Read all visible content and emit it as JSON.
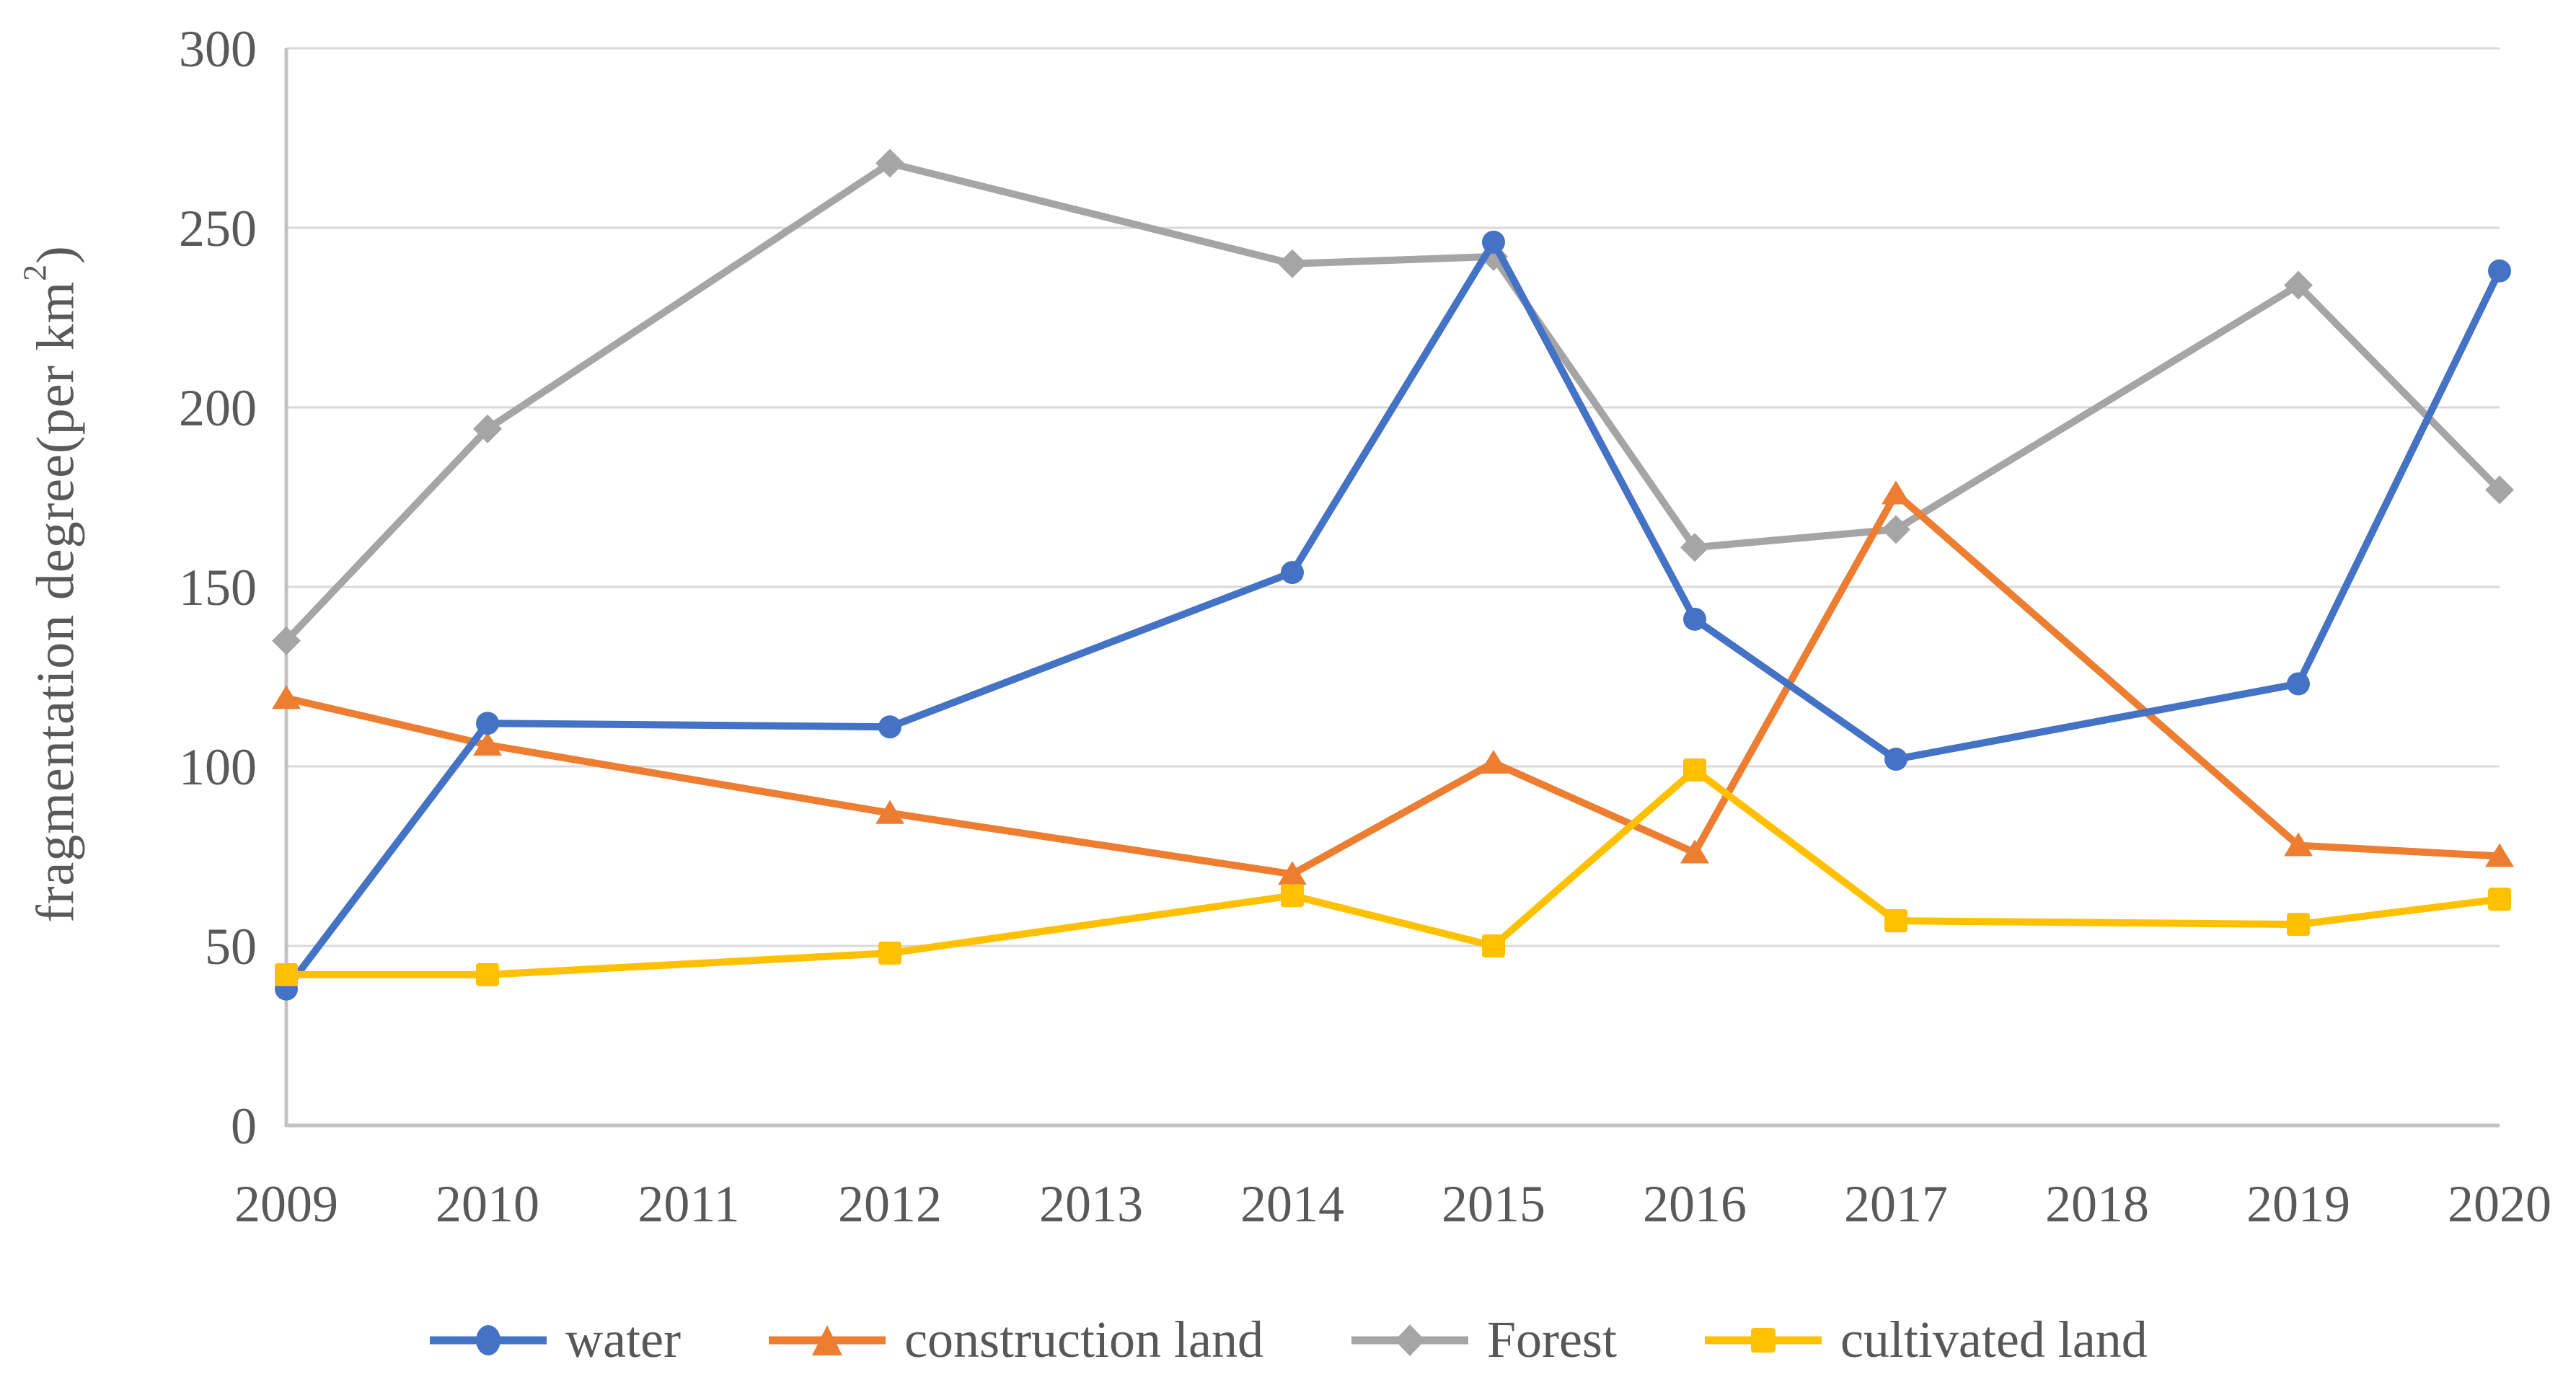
{
  "chart_data": {
    "type": "line",
    "title": "",
    "ylabel": {
      "main": "fragmentation degree(per km",
      "sup": "2",
      "close": ")"
    },
    "xlabel": "",
    "x_categories": [
      "2009",
      "2010",
      "2011",
      "2012",
      "2013",
      "2014",
      "2015",
      "2016",
      "2017",
      "2018",
      "2019",
      "2020"
    ],
    "ylim": [
      0,
      300
    ],
    "ytick_interval": 50,
    "ytick_labels": [
      "0",
      "50",
      "100",
      "150",
      "200",
      "250",
      "300"
    ],
    "grid": "horizontal",
    "legend_position": "bottom",
    "series": [
      {
        "name": "water",
        "color": "#4472C4",
        "marker": "circle",
        "points": {
          "2009": 38,
          "2010": 112,
          "2012": 111,
          "2014": 154,
          "2015": 246,
          "2016": 141,
          "2017": 102,
          "2019": 123,
          "2020": 238
        }
      },
      {
        "name": "construction land",
        "color": "#ED7D31",
        "marker": "triangle",
        "points": {
          "2009": 119,
          "2010": 106,
          "2012": 87,
          "2014": 70,
          "2015": 101,
          "2016": 76,
          "2017": 176,
          "2019": 78,
          "2020": 75
        }
      },
      {
        "name": "Forest",
        "color": "#A5A5A5",
        "marker": "diamond",
        "points": {
          "2009": 135,
          "2010": 194,
          "2012": 268,
          "2014": 240,
          "2015": 242,
          "2016": 161,
          "2017": 166,
          "2019": 234,
          "2020": 177
        }
      },
      {
        "name": "cultivated land",
        "color": "#FFC000",
        "marker": "square",
        "points": {
          "2009": 42,
          "2010": 42,
          "2012": 48,
          "2014": 64,
          "2015": 50,
          "2016": 99,
          "2017": 57,
          "2019": 56,
          "2020": 63
        }
      }
    ],
    "colors": {
      "gridline": "#D9D9D9",
      "axis_line": "#C3C3C3",
      "tick_text": "#595959",
      "legend_text": "#575757"
    }
  }
}
